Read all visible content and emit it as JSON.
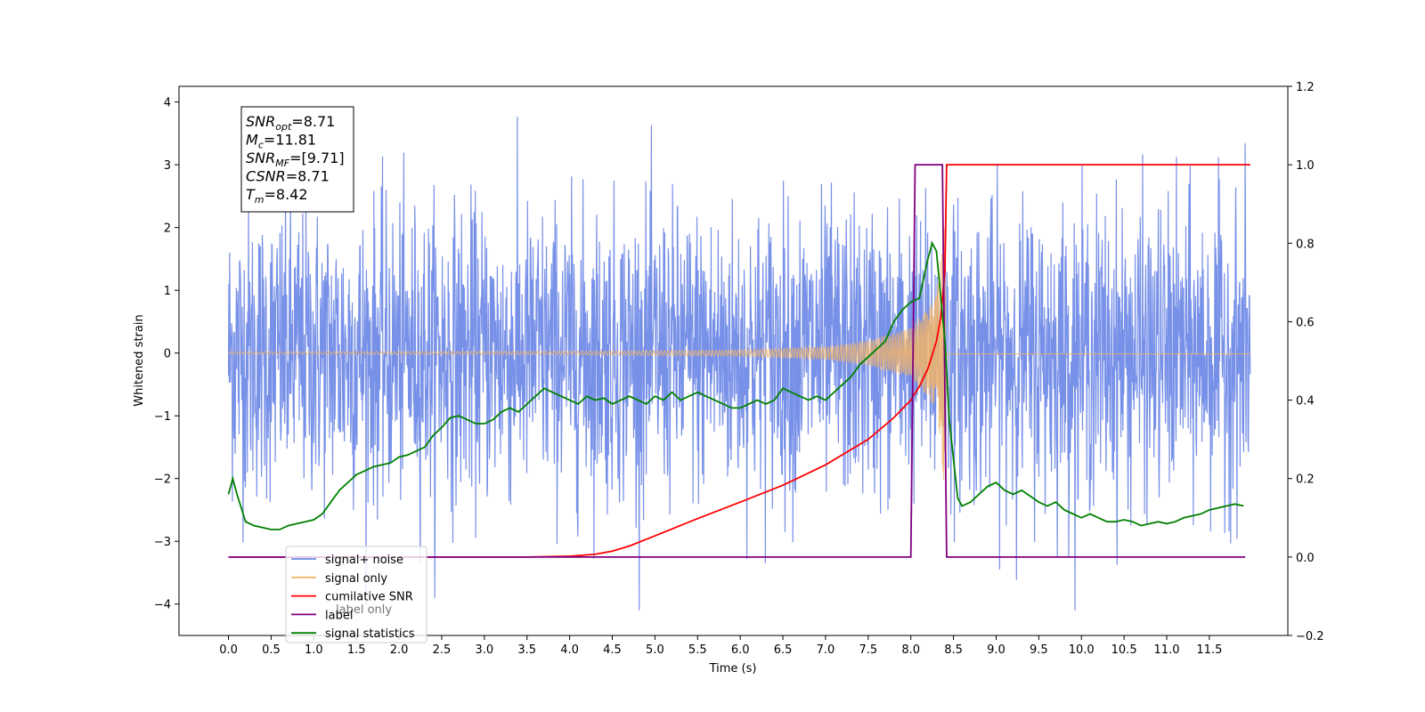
{
  "chart_data": {
    "type": "line",
    "title": "",
    "xlabel": "Time (s)",
    "ylabel": "Whitened strain",
    "xlim": [
      -0.58,
      12.42
    ],
    "ylim": [
      -4.5,
      4.25
    ],
    "y2lim": [
      -0.2,
      1.2
    ],
    "x_ticks": [
      0.0,
      0.5,
      1.0,
      1.5,
      2.0,
      2.5,
      3.0,
      3.5,
      4.0,
      4.5,
      5.0,
      5.5,
      6.0,
      6.5,
      7.0,
      7.5,
      8.0,
      8.5,
      9.0,
      9.5,
      10.0,
      10.5,
      11.0,
      11.5
    ],
    "x_tick_labels": [
      "0.0",
      "0.5",
      "1.0",
      "1.5",
      "2.0",
      "2.5",
      "3.0",
      "3.5",
      "4.0",
      "4.5",
      "5.0",
      "5.5",
      "6.0",
      "6.5",
      "7.0",
      "7.5",
      "8.0",
      "8.5",
      "9.0",
      "9.5",
      "10.0",
      "10.5",
      "11.0",
      "11.5"
    ],
    "y_ticks": [
      -4,
      -3,
      -2,
      -1,
      0,
      1,
      2,
      3,
      4
    ],
    "y_tick_labels": [
      "−4",
      "−3",
      "−2",
      "−1",
      "0",
      "1",
      "2",
      "3",
      "4"
    ],
    "y2_ticks": [
      -0.2,
      0.0,
      0.2,
      0.4,
      0.6,
      0.8,
      1.0,
      1.2
    ],
    "y2_tick_labels": [
      "−0.2",
      "0.0",
      "0.2",
      "0.4",
      "0.6",
      "0.8",
      "1.0",
      "1.2"
    ],
    "grid": false,
    "legend_position": "lower-left",
    "annotation_lines": [
      {
        "base": "SNR",
        "sub": "opt",
        "value": "=8.71"
      },
      {
        "base": "M",
        "sub": "c",
        "value": "=11.81"
      },
      {
        "base": "SNR",
        "sub": "MF",
        "value": "=[9.71]"
      },
      {
        "base": "CSNR",
        "sub": "",
        "value": "=8.71"
      },
      {
        "base": "T",
        "sub": "m",
        "value": "=8.42"
      }
    ],
    "series": [
      {
        "name": "signal+ noise",
        "color": "#6b87e6",
        "axis": "left",
        "description_amplitude_envelope": 2.3,
        "x_range": [
          0.0,
          11.98
        ]
      },
      {
        "name": "signal only",
        "color": "#f0b46a",
        "axis": "left",
        "chirp_end_time": 8.42,
        "envelope": [
          [
            0.0,
            0.02
          ],
          [
            4.0,
            0.03
          ],
          [
            6.0,
            0.05
          ],
          [
            7.0,
            0.1
          ],
          [
            7.5,
            0.2
          ],
          [
            8.0,
            0.4
          ],
          [
            8.3,
            0.9
          ],
          [
            8.4,
            2.2
          ],
          [
            8.42,
            0.0
          ]
        ]
      },
      {
        "name": "cumilative SNR",
        "color": "#ff0000",
        "axis": "right",
        "x": [
          0.0,
          3.5,
          4.0,
          4.3,
          4.5,
          4.7,
          5.0,
          5.5,
          6.0,
          6.5,
          7.0,
          7.5,
          7.8,
          8.0,
          8.1,
          8.2,
          8.3,
          8.35,
          8.4,
          8.42,
          8.45,
          11.98
        ],
        "y": [
          0.0,
          0.0,
          0.002,
          0.007,
          0.015,
          0.028,
          0.054,
          0.098,
          0.14,
          0.183,
          0.235,
          0.3,
          0.355,
          0.4,
          0.435,
          0.48,
          0.55,
          0.61,
          0.73,
          1.0,
          1.0,
          1.0
        ]
      },
      {
        "name": "label",
        "color": "#800080",
        "axis": "right",
        "x": [
          0.0,
          8.0,
          8.05,
          8.37,
          8.42,
          11.92
        ],
        "y": [
          0.0,
          0.0,
          1.0,
          1.0,
          0.0,
          0.0
        ]
      },
      {
        "name": "signal statistics",
        "color": "#008000",
        "axis": "right",
        "x": [
          0.0,
          0.05,
          0.1,
          0.2,
          0.3,
          0.4,
          0.5,
          0.6,
          0.7,
          0.8,
          0.9,
          1.0,
          1.1,
          1.2,
          1.3,
          1.4,
          1.5,
          1.6,
          1.7,
          1.8,
          1.9,
          2.0,
          2.1,
          2.2,
          2.3,
          2.4,
          2.5,
          2.6,
          2.7,
          2.8,
          2.9,
          3.0,
          3.1,
          3.2,
          3.3,
          3.4,
          3.5,
          3.6,
          3.7,
          3.8,
          3.9,
          4.0,
          4.1,
          4.2,
          4.3,
          4.4,
          4.5,
          4.6,
          4.7,
          4.8,
          4.9,
          5.0,
          5.1,
          5.2,
          5.3,
          5.4,
          5.5,
          5.6,
          5.7,
          5.8,
          5.9,
          6.0,
          6.1,
          6.2,
          6.3,
          6.4,
          6.5,
          6.6,
          6.7,
          6.8,
          6.9,
          7.0,
          7.1,
          7.2,
          7.3,
          7.4,
          7.5,
          7.6,
          7.7,
          7.8,
          7.9,
          8.0,
          8.1,
          8.2,
          8.25,
          8.3,
          8.4,
          8.45,
          8.5,
          8.55,
          8.6,
          8.7,
          8.8,
          8.9,
          9.0,
          9.1,
          9.2,
          9.3,
          9.4,
          9.5,
          9.6,
          9.7,
          9.8,
          9.9,
          10.0,
          10.1,
          10.2,
          10.3,
          10.4,
          10.5,
          10.6,
          10.7,
          10.8,
          10.9,
          11.0,
          11.1,
          11.2,
          11.3,
          11.4,
          11.5,
          11.6,
          11.7,
          11.8,
          11.9
        ],
        "y": [
          0.16,
          0.2,
          0.16,
          0.09,
          0.08,
          0.075,
          0.07,
          0.07,
          0.08,
          0.085,
          0.09,
          0.095,
          0.11,
          0.14,
          0.17,
          0.19,
          0.21,
          0.22,
          0.23,
          0.235,
          0.24,
          0.255,
          0.26,
          0.27,
          0.28,
          0.31,
          0.33,
          0.355,
          0.36,
          0.35,
          0.34,
          0.34,
          0.35,
          0.37,
          0.38,
          0.37,
          0.39,
          0.41,
          0.43,
          0.42,
          0.41,
          0.4,
          0.39,
          0.41,
          0.4,
          0.405,
          0.39,
          0.4,
          0.41,
          0.4,
          0.39,
          0.41,
          0.4,
          0.42,
          0.4,
          0.41,
          0.42,
          0.41,
          0.4,
          0.39,
          0.38,
          0.38,
          0.39,
          0.4,
          0.39,
          0.4,
          0.43,
          0.42,
          0.41,
          0.4,
          0.41,
          0.4,
          0.42,
          0.44,
          0.46,
          0.49,
          0.51,
          0.53,
          0.55,
          0.6,
          0.63,
          0.65,
          0.66,
          0.76,
          0.8,
          0.78,
          0.55,
          0.35,
          0.25,
          0.15,
          0.13,
          0.14,
          0.16,
          0.18,
          0.19,
          0.17,
          0.16,
          0.17,
          0.155,
          0.14,
          0.13,
          0.14,
          0.12,
          0.11,
          0.1,
          0.11,
          0.1,
          0.09,
          0.09,
          0.095,
          0.09,
          0.08,
          0.085,
          0.09,
          0.085,
          0.09,
          0.1,
          0.105,
          0.11,
          0.12,
          0.125,
          0.13,
          0.135,
          0.13
        ]
      }
    ],
    "legend": [
      "signal+ noise",
      "signal only",
      "cumilative SNR",
      "label",
      "signal statistics"
    ],
    "legend_overlap_text": "label only"
  }
}
